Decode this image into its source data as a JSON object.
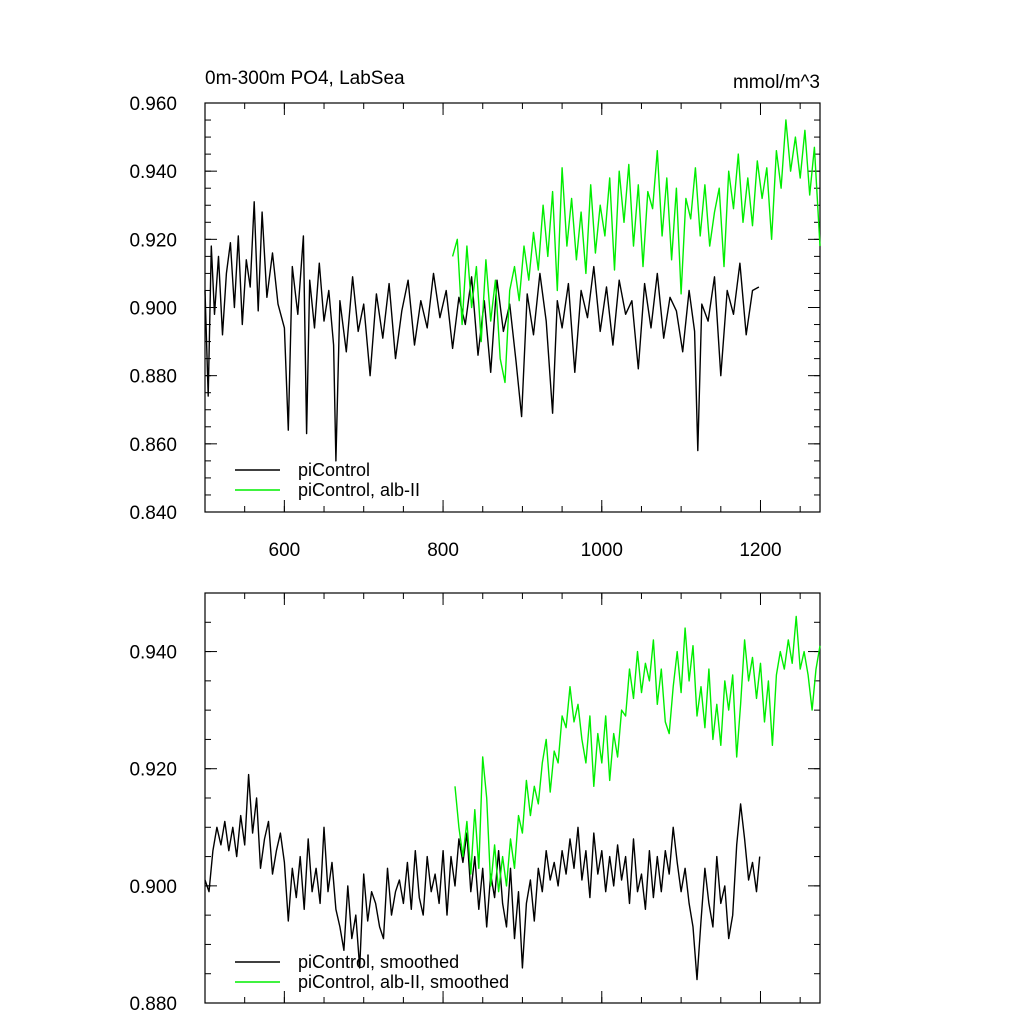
{
  "colors": {
    "control": "#000000",
    "alb": "#00ee00"
  },
  "chart_data": [
    {
      "type": "line",
      "title": "0m-300m PO4, LabSea",
      "units": "mmol/m^3",
      "xlim": [
        500,
        1275
      ],
      "ylim": [
        0.84,
        0.96
      ],
      "x_ticks": [
        "600",
        "800",
        "1000",
        "1200"
      ],
      "y_ticks": [
        "0.840",
        "0.860",
        "0.880",
        "0.900",
        "0.920",
        "0.940",
        "0.960"
      ],
      "legend_position": "bottom-left",
      "series": [
        {
          "name": "piControl",
          "color": "#000000",
          "x": [
            500,
            504,
            508,
            512,
            517,
            522,
            527,
            532,
            537,
            542,
            547,
            552,
            557,
            562,
            567,
            572,
            578,
            585,
            592,
            600,
            605,
            610,
            617,
            624,
            628,
            632,
            638,
            644,
            650,
            656,
            662,
            665,
            670,
            678,
            686,
            693,
            700,
            708,
            716,
            724,
            732,
            740,
            748,
            756,
            764,
            772,
            780,
            788,
            796,
            804,
            812,
            820,
            828,
            836,
            844,
            852,
            860,
            868,
            876,
            884,
            892,
            899,
            906,
            914,
            922,
            930,
            938,
            944,
            950,
            958,
            966,
            974,
            982,
            990,
            998,
            1006,
            1014,
            1022,
            1030,
            1038,
            1046,
            1054,
            1062,
            1070,
            1078,
            1086,
            1094,
            1102,
            1110,
            1117,
            1121,
            1126,
            1134,
            1142,
            1150,
            1158,
            1166,
            1174,
            1182,
            1190,
            1198
          ],
          "y": [
            0.905,
            0.874,
            0.918,
            0.898,
            0.915,
            0.892,
            0.91,
            0.919,
            0.9,
            0.921,
            0.895,
            0.914,
            0.906,
            0.931,
            0.899,
            0.928,
            0.903,
            0.916,
            0.901,
            0.894,
            0.864,
            0.912,
            0.898,
            0.921,
            0.863,
            0.908,
            0.894,
            0.913,
            0.896,
            0.905,
            0.889,
            0.855,
            0.902,
            0.887,
            0.909,
            0.893,
            0.901,
            0.88,
            0.904,
            0.891,
            0.907,
            0.885,
            0.899,
            0.908,
            0.889,
            0.902,
            0.894,
            0.91,
            0.897,
            0.905,
            0.888,
            0.903,
            0.895,
            0.909,
            0.886,
            0.902,
            0.881,
            0.908,
            0.893,
            0.901,
            0.884,
            0.868,
            0.904,
            0.892,
            0.91,
            0.896,
            0.869,
            0.902,
            0.894,
            0.907,
            0.881,
            0.905,
            0.897,
            0.912,
            0.893,
            0.906,
            0.889,
            0.908,
            0.898,
            0.902,
            0.882,
            0.907,
            0.894,
            0.91,
            0.891,
            0.903,
            0.899,
            0.887,
            0.905,
            0.893,
            0.858,
            0.901,
            0.896,
            0.909,
            0.88,
            0.905,
            0.898,
            0.913,
            0.892,
            0.905,
            0.906
          ]
        },
        {
          "name": "piControl, alb-II",
          "color": "#00ee00",
          "x": [
            812,
            818,
            824,
            830,
            836,
            842,
            848,
            854,
            860,
            866,
            872,
            878,
            884,
            890,
            896,
            902,
            908,
            914,
            920,
            926,
            932,
            938,
            944,
            950,
            956,
            962,
            968,
            974,
            980,
            986,
            992,
            998,
            1004,
            1010,
            1016,
            1022,
            1028,
            1034,
            1040,
            1046,
            1052,
            1058,
            1064,
            1070,
            1076,
            1082,
            1088,
            1094,
            1100,
            1106,
            1112,
            1118,
            1124,
            1130,
            1136,
            1142,
            1148,
            1154,
            1160,
            1166,
            1172,
            1178,
            1184,
            1190,
            1196,
            1202,
            1208,
            1214,
            1220,
            1226,
            1232,
            1238,
            1244,
            1250,
            1256,
            1262,
            1268,
            1275
          ],
          "y": [
            0.915,
            0.92,
            0.895,
            0.918,
            0.9,
            0.912,
            0.89,
            0.914,
            0.896,
            0.908,
            0.885,
            0.878,
            0.905,
            0.912,
            0.902,
            0.918,
            0.908,
            0.922,
            0.911,
            0.93,
            0.915,
            0.934,
            0.905,
            0.941,
            0.918,
            0.932,
            0.914,
            0.928,
            0.91,
            0.936,
            0.916,
            0.93,
            0.921,
            0.938,
            0.911,
            0.94,
            0.925,
            0.942,
            0.918,
            0.936,
            0.912,
            0.934,
            0.929,
            0.946,
            0.921,
            0.938,
            0.914,
            0.935,
            0.904,
            0.932,
            0.926,
            0.941,
            0.921,
            0.936,
            0.918,
            0.928,
            0.935,
            0.912,
            0.94,
            0.929,
            0.945,
            0.925,
            0.938,
            0.924,
            0.943,
            0.932,
            0.941,
            0.92,
            0.946,
            0.935,
            0.955,
            0.94,
            0.95,
            0.938,
            0.952,
            0.933,
            0.947,
            0.918
          ]
        }
      ]
    },
    {
      "type": "line",
      "xlim": [
        500,
        1275
      ],
      "ylim": [
        0.88,
        0.95
      ],
      "y_ticks": [
        "0.880",
        "0.900",
        "0.920",
        "0.940"
      ],
      "legend_position": "bottom-left",
      "series": [
        {
          "name": "piControl, smoothed",
          "color": "#000000",
          "x": [
            500,
            505,
            510,
            515,
            520,
            525,
            530,
            535,
            540,
            545,
            550,
            555,
            560,
            565,
            570,
            575,
            580,
            585,
            590,
            595,
            600,
            605,
            610,
            615,
            620,
            625,
            630,
            635,
            640,
            645,
            650,
            655,
            660,
            665,
            670,
            675,
            680,
            685,
            690,
            695,
            700,
            705,
            710,
            715,
            720,
            725,
            730,
            735,
            740,
            745,
            750,
            755,
            760,
            765,
            770,
            775,
            780,
            785,
            790,
            795,
            800,
            805,
            810,
            815,
            820,
            825,
            830,
            835,
            840,
            845,
            850,
            855,
            860,
            865,
            870,
            875,
            880,
            885,
            890,
            895,
            900,
            905,
            910,
            915,
            920,
            925,
            930,
            935,
            940,
            945,
            950,
            955,
            960,
            965,
            970,
            975,
            980,
            985,
            990,
            995,
            1000,
            1005,
            1010,
            1015,
            1020,
            1025,
            1030,
            1035,
            1040,
            1045,
            1050,
            1055,
            1060,
            1065,
            1070,
            1075,
            1080,
            1085,
            1090,
            1095,
            1100,
            1105,
            1110,
            1115,
            1120,
            1125,
            1130,
            1135,
            1140,
            1145,
            1150,
            1155,
            1160,
            1165,
            1170,
            1175,
            1180,
            1185,
            1190,
            1195,
            1199
          ],
          "y": [
            0.901,
            0.899,
            0.906,
            0.91,
            0.907,
            0.911,
            0.906,
            0.91,
            0.905,
            0.912,
            0.907,
            0.919,
            0.909,
            0.915,
            0.903,
            0.908,
            0.911,
            0.902,
            0.906,
            0.909,
            0.904,
            0.894,
            0.903,
            0.898,
            0.905,
            0.896,
            0.908,
            0.899,
            0.903,
            0.897,
            0.91,
            0.899,
            0.904,
            0.896,
            0.893,
            0.889,
            0.9,
            0.891,
            0.895,
            0.886,
            0.902,
            0.894,
            0.899,
            0.897,
            0.893,
            0.891,
            0.903,
            0.895,
            0.899,
            0.901,
            0.897,
            0.904,
            0.896,
            0.906,
            0.898,
            0.895,
            0.905,
            0.899,
            0.902,
            0.897,
            0.906,
            0.895,
            0.905,
            0.9,
            0.908,
            0.904,
            0.909,
            0.899,
            0.905,
            0.896,
            0.903,
            0.893,
            0.902,
            0.898,
            0.906,
            0.897,
            0.893,
            0.903,
            0.891,
            0.899,
            0.886,
            0.897,
            0.901,
            0.894,
            0.903,
            0.899,
            0.906,
            0.901,
            0.904,
            0.9,
            0.906,
            0.902,
            0.908,
            0.903,
            0.91,
            0.901,
            0.906,
            0.898,
            0.909,
            0.902,
            0.906,
            0.899,
            0.905,
            0.9,
            0.907,
            0.901,
            0.905,
            0.897,
            0.908,
            0.899,
            0.902,
            0.896,
            0.906,
            0.898,
            0.905,
            0.899,
            0.906,
            0.902,
            0.91,
            0.904,
            0.899,
            0.903,
            0.897,
            0.893,
            0.884,
            0.894,
            0.903,
            0.897,
            0.893,
            0.905,
            0.897,
            0.9,
            0.891,
            0.895,
            0.907,
            0.914,
            0.908,
            0.901,
            0.904,
            0.899,
            0.905
          ]
        },
        {
          "name": "piControl, alb-II, smoothed",
          "color": "#00ee00",
          "x": [
            815,
            820,
            825,
            830,
            835,
            840,
            845,
            850,
            855,
            860,
            865,
            870,
            875,
            880,
            885,
            890,
            895,
            900,
            905,
            910,
            915,
            920,
            925,
            930,
            935,
            940,
            945,
            950,
            955,
            960,
            965,
            970,
            975,
            980,
            985,
            990,
            995,
            1000,
            1005,
            1010,
            1015,
            1020,
            1025,
            1030,
            1035,
            1040,
            1045,
            1050,
            1055,
            1060,
            1065,
            1070,
            1075,
            1080,
            1085,
            1090,
            1095,
            1100,
            1105,
            1110,
            1115,
            1120,
            1125,
            1130,
            1135,
            1140,
            1145,
            1150,
            1155,
            1160,
            1165,
            1170,
            1175,
            1180,
            1185,
            1190,
            1195,
            1200,
            1205,
            1210,
            1215,
            1220,
            1225,
            1230,
            1235,
            1240,
            1245,
            1250,
            1255,
            1260,
            1265,
            1270,
            1275
          ],
          "y": [
            0.917,
            0.91,
            0.905,
            0.911,
            0.902,
            0.913,
            0.903,
            0.922,
            0.915,
            0.9,
            0.907,
            0.899,
            0.905,
            0.9,
            0.908,
            0.903,
            0.912,
            0.909,
            0.918,
            0.912,
            0.917,
            0.914,
            0.921,
            0.925,
            0.916,
            0.923,
            0.921,
            0.929,
            0.927,
            0.934,
            0.928,
            0.931,
            0.925,
            0.921,
            0.929,
            0.917,
            0.926,
            0.921,
            0.929,
            0.918,
            0.926,
            0.922,
            0.93,
            0.929,
            0.937,
            0.932,
            0.94,
            0.933,
            0.938,
            0.935,
            0.942,
            0.931,
            0.937,
            0.928,
            0.926,
            0.934,
            0.94,
            0.933,
            0.944,
            0.935,
            0.941,
            0.929,
            0.934,
            0.927,
            0.937,
            0.925,
            0.931,
            0.924,
            0.935,
            0.93,
            0.936,
            0.922,
            0.931,
            0.942,
            0.935,
            0.939,
            0.932,
            0.938,
            0.928,
            0.935,
            0.924,
            0.936,
            0.94,
            0.937,
            0.942,
            0.938,
            0.946,
            0.937,
            0.94,
            0.936,
            0.93,
            0.937,
            0.941
          ]
        }
      ]
    }
  ]
}
